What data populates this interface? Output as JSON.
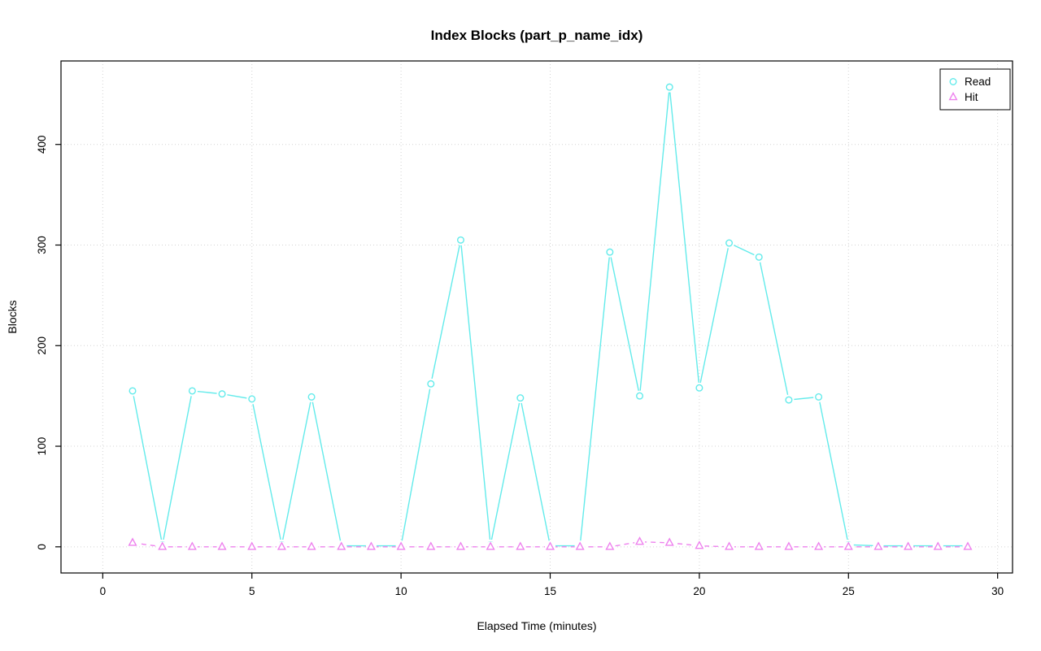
{
  "chart_data": {
    "type": "line",
    "title": "Index Blocks (part_p_name_idx)",
    "xlabel": "Elapsed Time (minutes)",
    "ylabel": "Blocks",
    "xlim": [
      -1.4,
      30.5
    ],
    "ylim": [
      -26,
      483
    ],
    "xticks": [
      0,
      5,
      10,
      15,
      20,
      25,
      30
    ],
    "yticks": [
      0,
      100,
      200,
      300,
      400
    ],
    "grid": true,
    "grid_color": "#d3d3d3",
    "axis_color": "#000000",
    "background": "#ffffff",
    "legend_position": "top-right",
    "x": [
      1,
      2,
      3,
      4,
      5,
      6,
      7,
      8,
      9,
      10,
      11,
      12,
      13,
      14,
      15,
      16,
      17,
      18,
      19,
      20,
      21,
      22,
      23,
      24,
      25,
      26,
      27,
      28,
      29
    ],
    "series": [
      {
        "name": "Read",
        "color": "#63ebeb",
        "marker": "circle",
        "line": "solid",
        "values": [
          155,
          2,
          155,
          152,
          147,
          2,
          149,
          1,
          1,
          1,
          162,
          305,
          2,
          148,
          1,
          1,
          293,
          150,
          457,
          158,
          302,
          288,
          146,
          149,
          2,
          1,
          1,
          1,
          1
        ]
      },
      {
        "name": "Hit",
        "color": "#ee82ee",
        "marker": "triangle",
        "line": "dashed",
        "values": [
          4,
          0,
          0,
          0,
          0,
          0,
          0,
          0,
          0,
          0,
          0,
          0,
          0,
          0,
          0,
          0,
          0,
          5,
          4,
          1,
          0,
          0,
          0,
          0,
          0,
          0,
          0,
          0,
          0
        ]
      }
    ]
  }
}
